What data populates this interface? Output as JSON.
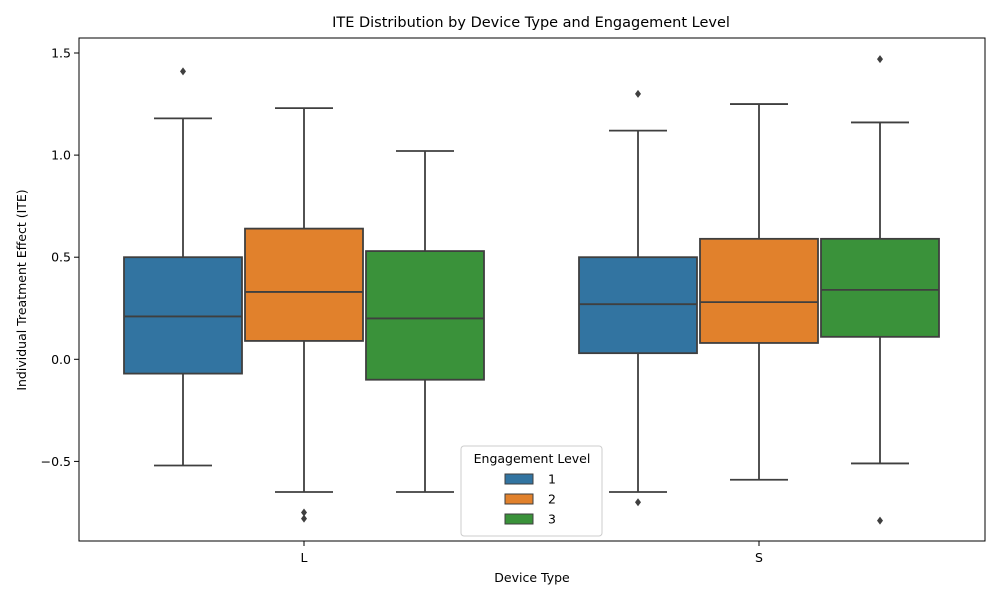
{
  "chart_data": {
    "type": "box",
    "title": "ITE Distribution by Device Type and Engagement Level",
    "xlabel": "Device Type",
    "ylabel": "Individual Treatment Effect (ITE)",
    "ylim": [
      -0.9,
      1.6
    ],
    "yticks": [
      -0.5,
      0.0,
      0.5,
      1.0,
      1.5
    ],
    "ytick_labels": [
      "−0.5",
      "0.0",
      "0.5",
      "1.0",
      "1.5"
    ],
    "categories": [
      "L",
      "S"
    ],
    "grid": false,
    "legend": {
      "title": "Engagement Level",
      "placement": "bottom-center"
    },
    "series": [
      {
        "name": "1",
        "color": "#3274a1",
        "boxes": [
          {
            "whisker_low": -0.52,
            "q1": -0.07,
            "median": 0.21,
            "q3": 0.5,
            "whisker_high": 1.18,
            "outliers": [
              1.41
            ]
          },
          {
            "whisker_low": -0.65,
            "q1": 0.03,
            "median": 0.27,
            "q3": 0.5,
            "whisker_high": 1.12,
            "outliers": [
              1.3,
              -0.7
            ]
          }
        ]
      },
      {
        "name": "2",
        "color": "#e1812c",
        "boxes": [
          {
            "whisker_low": -0.65,
            "q1": 0.09,
            "median": 0.33,
            "q3": 0.64,
            "whisker_high": 1.23,
            "outliers": [
              -0.75,
              -0.78
            ]
          },
          {
            "whisker_low": -0.59,
            "q1": 0.08,
            "median": 0.28,
            "q3": 0.59,
            "whisker_high": 1.25,
            "outliers": []
          }
        ]
      },
      {
        "name": "3",
        "color": "#3a923a",
        "boxes": [
          {
            "whisker_low": -0.65,
            "q1": -0.1,
            "median": 0.2,
            "q3": 0.53,
            "whisker_high": 1.02,
            "outliers": []
          },
          {
            "whisker_low": -0.51,
            "q1": 0.11,
            "median": 0.34,
            "q3": 0.59,
            "whisker_high": 1.16,
            "outliers": [
              1.47,
              -0.79
            ]
          }
        ]
      }
    ]
  }
}
